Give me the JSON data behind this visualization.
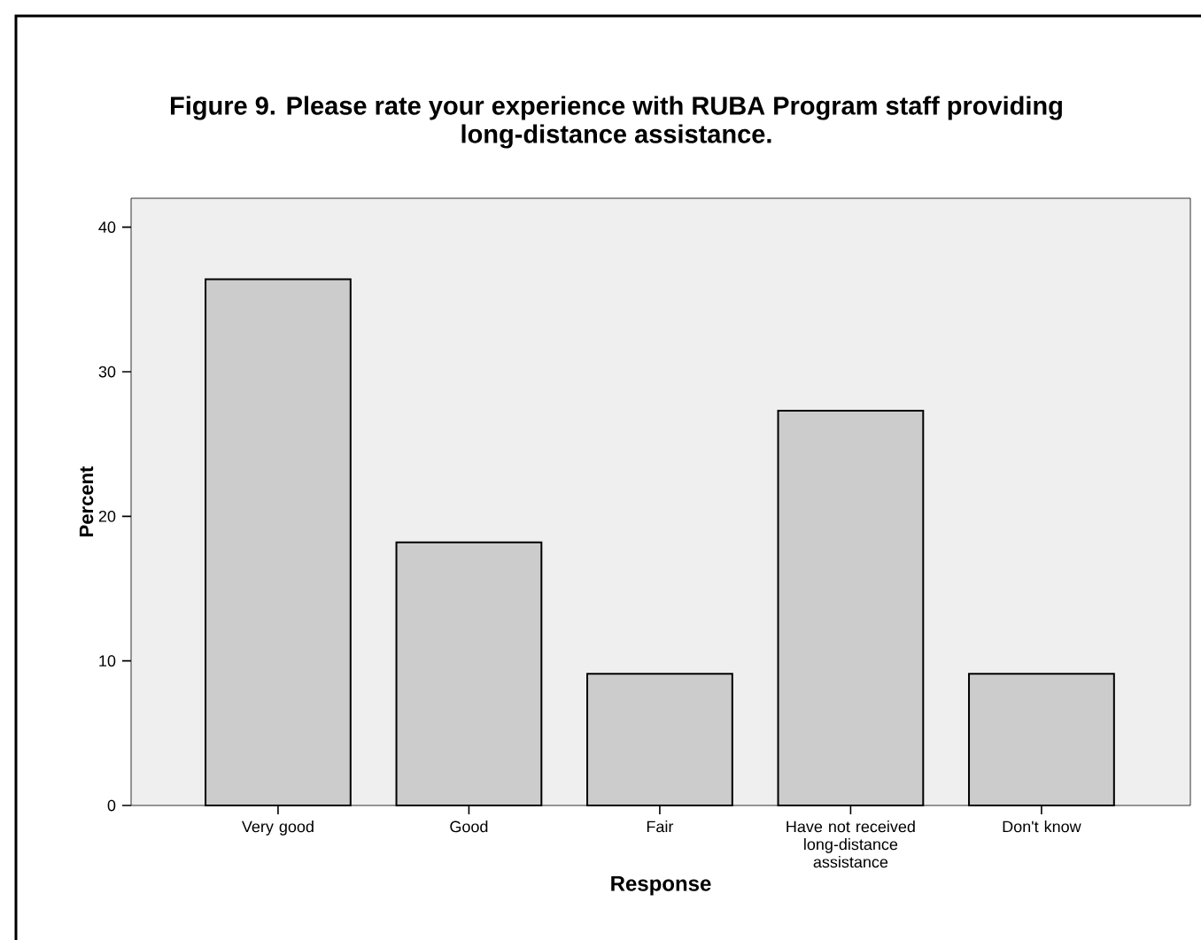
{
  "chart_data": {
    "type": "bar",
    "title": "Figure 9.  Please rate your experience with RUBA Program staff providing long-distance assistance.",
    "xlabel": "Response",
    "ylabel": "Percent",
    "categories": [
      "Very good",
      "Good",
      "Fair",
      "Have not received long-distance assistance",
      "Don't know"
    ],
    "values": [
      36.4,
      18.2,
      9.1,
      27.3,
      9.1
    ],
    "color": "#cccccc",
    "ylim": [
      0,
      42
    ],
    "yticks": [
      0,
      10,
      20,
      30,
      40
    ]
  }
}
